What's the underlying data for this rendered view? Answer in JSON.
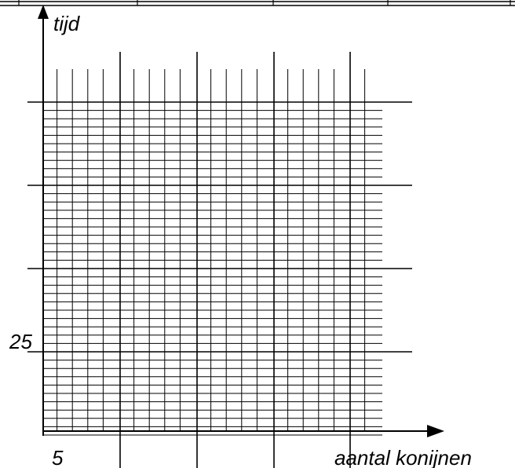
{
  "chart_data": {
    "type": "line",
    "title": "",
    "xlabel": "aantal konijnen",
    "ylabel": "tijd",
    "x_tick_labels": [
      {
        "value": 5,
        "text": "5"
      }
    ],
    "y_tick_labels": [
      {
        "value": 25,
        "text": "25"
      }
    ],
    "xlim": [
      0,
      25
    ],
    "ylim": [
      0,
      25
    ],
    "x_minor_step": 1,
    "x_major_step": 5,
    "y_minor_step": 1,
    "y_major_step": 5,
    "grid": true,
    "series": []
  }
}
